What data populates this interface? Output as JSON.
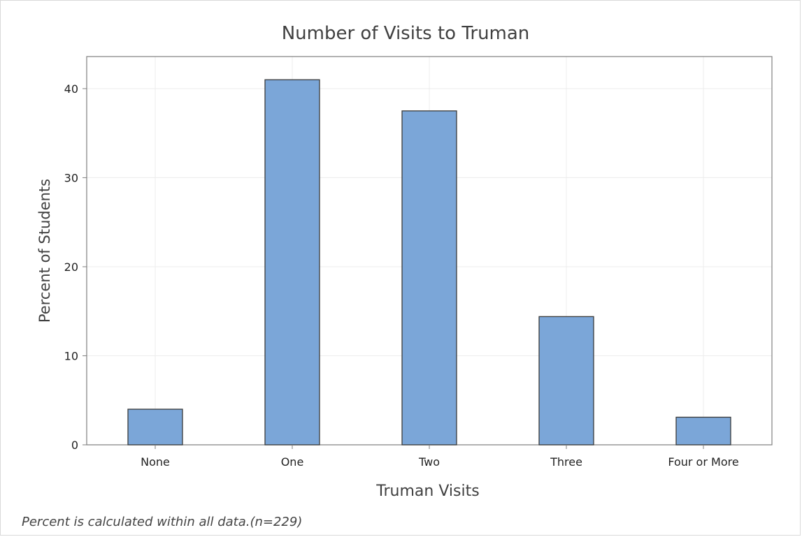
{
  "chart_data": {
    "type": "bar",
    "title": "Number of Visits to Truman",
    "xlabel": "Truman Visits",
    "ylabel": "Percent of Students",
    "categories": [
      "None",
      "One",
      "Two",
      "Three",
      "Four or More"
    ],
    "values": [
      4.0,
      41.0,
      37.5,
      14.4,
      3.1
    ],
    "ylim": [
      0,
      43.6
    ],
    "yticks": [
      0,
      10,
      20,
      30,
      40
    ],
    "grid": true,
    "bar_color": "#7ba6d8",
    "bar_edge_color": "#3a3a3a"
  },
  "footnote": "Percent is calculated within all data.(n=229)"
}
